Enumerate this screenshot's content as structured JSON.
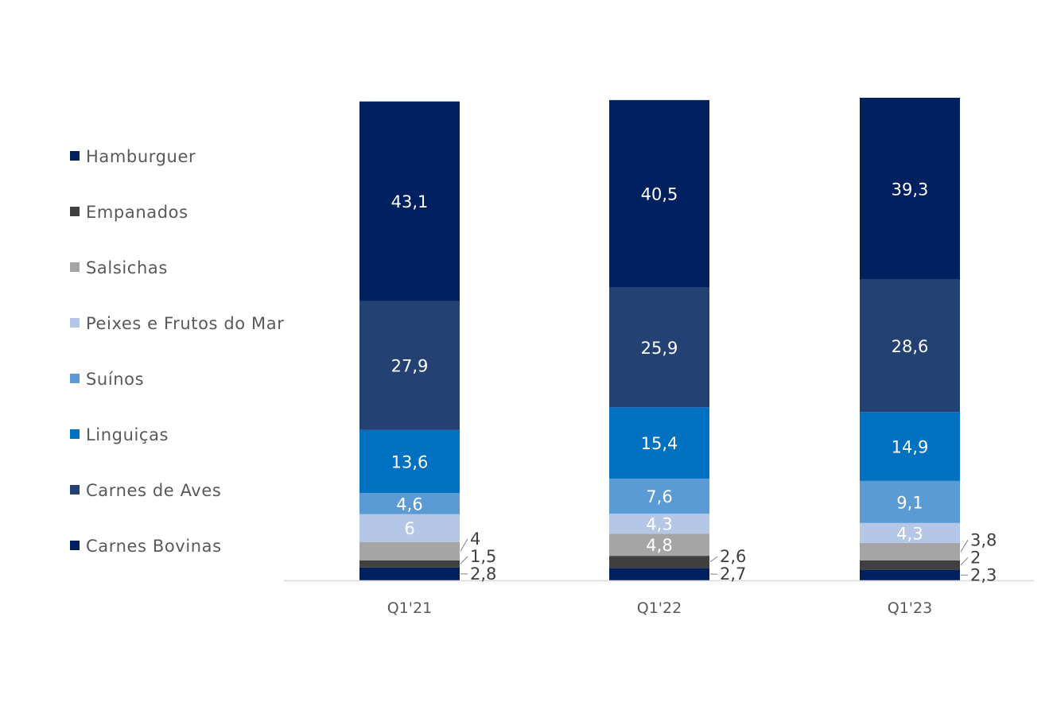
{
  "chart_data": {
    "type": "bar",
    "stacked": true,
    "title": "",
    "xlabel": "",
    "ylabel": "",
    "categories": [
      "Q1'21",
      "Q1'22",
      "Q1'23"
    ],
    "series": [
      {
        "name": "Hamburguer",
        "color": "#002060",
        "values": [
          2.8,
          2.7,
          2.3
        ],
        "labels": [
          "2,8",
          "2,7",
          "2,3"
        ]
      },
      {
        "name": "Empanados",
        "color": "#404040",
        "values": [
          1.5,
          2.6,
          2
        ],
        "labels": [
          "1,5",
          "2,6",
          "2"
        ]
      },
      {
        "name": "Salsichas",
        "color": "#A5A5A5",
        "values": [
          4,
          4.8,
          3.8
        ],
        "labels": [
          "4",
          "4,8",
          "3,8"
        ]
      },
      {
        "name": "Peixes e Frutos do Mar",
        "color": "#B4C7E7",
        "values": [
          6,
          4.3,
          4.3
        ],
        "labels": [
          "6",
          "4,3",
          "4,3"
        ]
      },
      {
        "name": "Suínos",
        "color": "#5B9BD5",
        "values": [
          4.6,
          7.6,
          9.1
        ],
        "labels": [
          "4,6",
          "7,6",
          "9,1"
        ]
      },
      {
        "name": "Linguiças",
        "color": "#0070C0",
        "values": [
          13.6,
          15.4,
          14.9
        ],
        "labels": [
          "13,6",
          "15,4",
          "14,9"
        ]
      },
      {
        "name": "Carnes de Aves",
        "color": "#244174",
        "values": [
          27.9,
          25.9,
          28.6
        ],
        "labels": [
          "27,9",
          "25,9",
          "28,6"
        ]
      },
      {
        "name": "Carnes Bovinas",
        "color": "#002060",
        "values": [
          43.1,
          40.5,
          39.3
        ],
        "labels": [
          "43,1",
          "40,5",
          "39,3"
        ]
      }
    ],
    "legend_position": "left",
    "grid": false
  }
}
